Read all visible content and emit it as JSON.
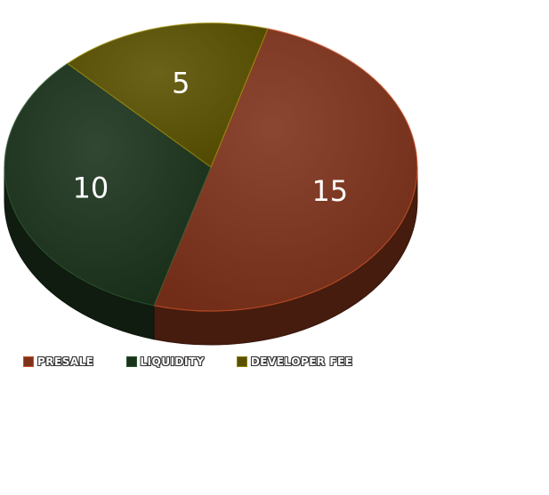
{
  "chart_data": {
    "type": "pie",
    "title": "",
    "categories": [
      "PRESALE",
      "LIQUIDITY",
      "DEVELOPER FEE"
    ],
    "values": [
      15,
      10,
      5
    ],
    "colors": [
      "#7e321a",
      "#1b331c",
      "#5a5100"
    ],
    "legend_position": "bottom-left",
    "style": "3d"
  }
}
